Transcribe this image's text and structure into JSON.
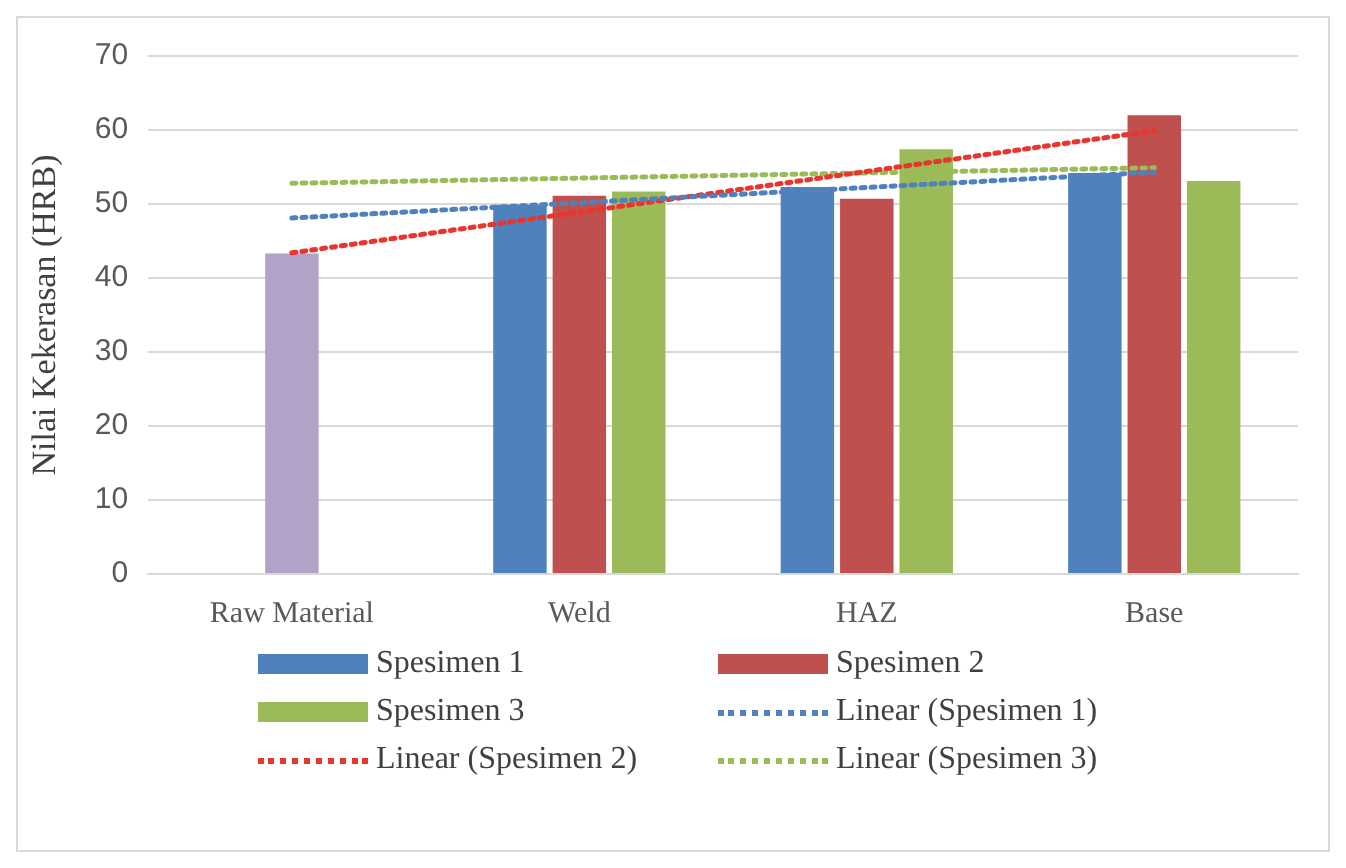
{
  "chart_data": {
    "type": "bar",
    "ylabel": "Nilai Kekerasan (HRB)",
    "categories": [
      "Raw Material",
      "Weld",
      "HAZ",
      "Base"
    ],
    "ylim": [
      0,
      70
    ],
    "yticks": [
      0,
      10,
      20,
      30,
      40,
      50,
      60,
      70
    ],
    "grid": "y",
    "legend": "bottom",
    "series": [
      {
        "name": "Spesimen 1",
        "color": "#4f81bd",
        "values": [
          null,
          49.9,
          52.3,
          54.2
        ]
      },
      {
        "name": "Spesimen 2",
        "color": "#c0504d",
        "colors": [
          "#b3a2c7",
          "#c0504d",
          "#c0504d",
          "#c0504d"
        ],
        "values": [
          43.3,
          51.1,
          50.7,
          62.0
        ]
      },
      {
        "name": "Spesimen 3",
        "color": "#9bbb59",
        "values": [
          null,
          51.7,
          57.4,
          53.1
        ]
      },
      {
        "name": "Linear (Spesimen 1)",
        "type": "line",
        "line_style": "dotted",
        "color": "#4f81bd",
        "values": [
          48.1,
          null,
          null,
          54.3
        ]
      },
      {
        "name": "Linear (Spesimen 2)",
        "type": "line",
        "line_style": "dotted",
        "color": "#e8352e",
        "values": [
          43.4,
          null,
          null,
          59.9
        ]
      },
      {
        "name": "Linear (Spesimen 3)",
        "type": "line",
        "line_style": "dotted",
        "color": "#9bbb59",
        "values": [
          52.8,
          null,
          null,
          54.9
        ]
      }
    ]
  }
}
